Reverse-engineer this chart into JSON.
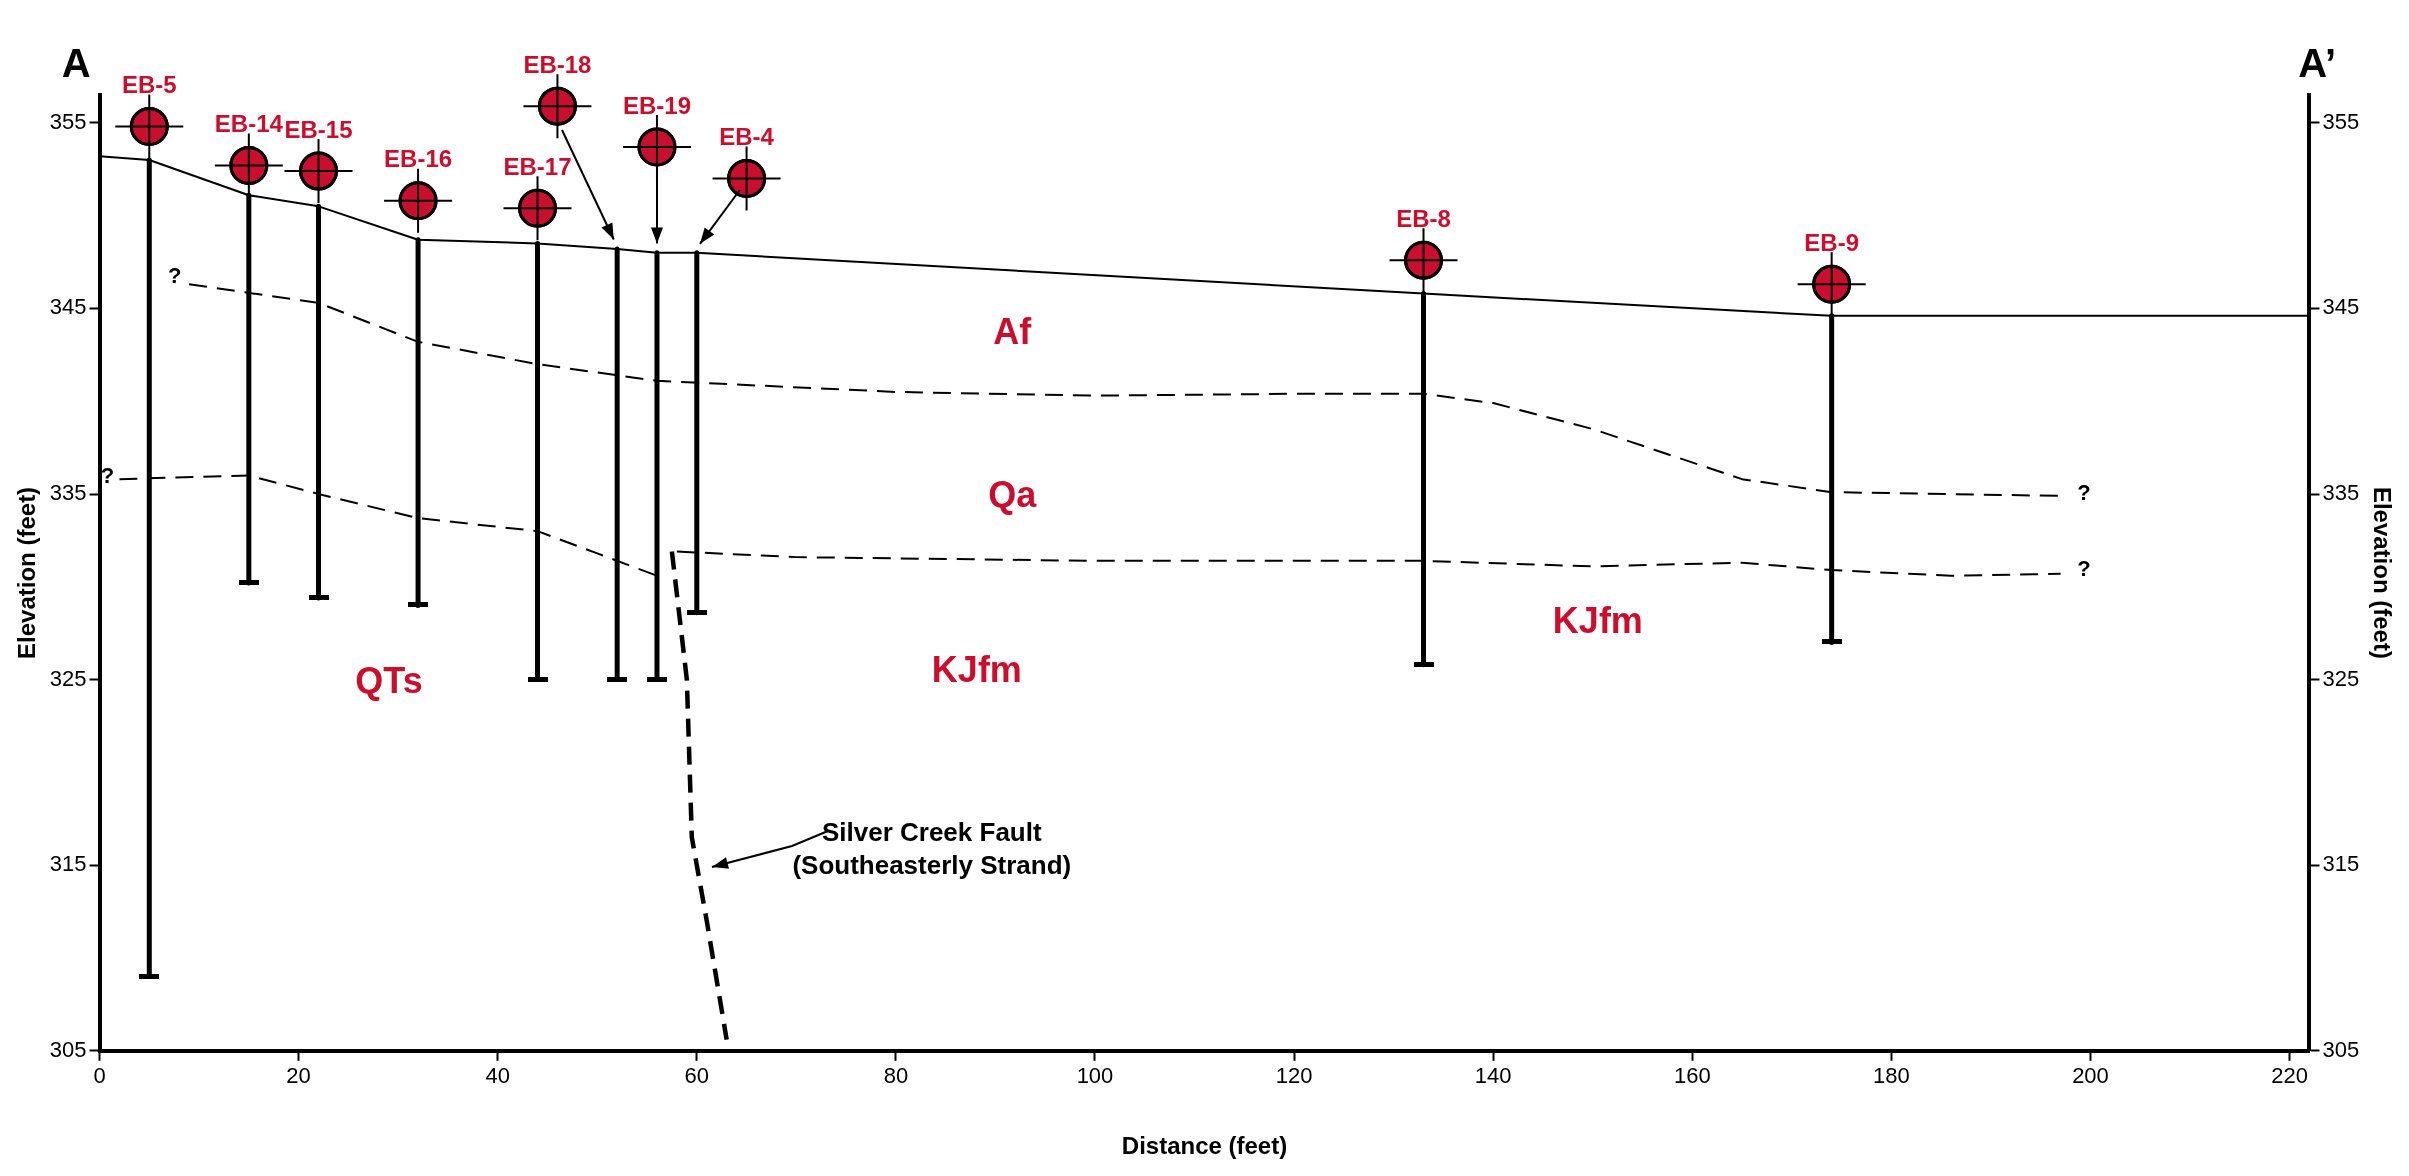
{
  "chart_data": {
    "type": "line",
    "xlabel": "Distance (feet)",
    "ylabel": "Elevation (feet)",
    "y2label": "Elevation (feet)",
    "xlim": [
      0,
      222
    ],
    "xticks": [
      0,
      20,
      40,
      60,
      80,
      100,
      120,
      140,
      160,
      180,
      200,
      220
    ],
    "ylim": [
      305,
      356.5
    ],
    "yticks": [
      305,
      315,
      325,
      335,
      345,
      355
    ],
    "y2lim": [
      305,
      356.5
    ],
    "y2ticks": [
      305,
      315,
      325,
      335,
      345,
      355
    ],
    "grid": false,
    "legend": false,
    "series": [
      {
        "type": "line",
        "color": "#000000",
        "line_style": "solid",
        "x": [
          0,
          5,
          15,
          22,
          32,
          44,
          52,
          56,
          60,
          133,
          174,
          222
        ],
        "values": [
          353.2,
          353.0,
          351.1,
          350.5,
          348.7,
          348.5,
          348.2,
          348.0,
          348.0,
          345.8,
          344.6,
          344.6
        ]
      },
      {
        "type": "line",
        "color": "#000000",
        "line_style": "dashed",
        "x": [
          9,
          22,
          32,
          44,
          56,
          80,
          100,
          120,
          133,
          140,
          150,
          165,
          174,
          197
        ],
        "values": [
          346.3,
          345.3,
          343.2,
          342.0,
          341.1,
          340.5,
          340.3,
          340.4,
          340.4,
          339.9,
          338.5,
          335.8,
          335.1,
          334.9
        ]
      },
      {
        "type": "line",
        "color": "#000000",
        "line_style": "dashed",
        "x": [
          2,
          15,
          22,
          32,
          44,
          50,
          56
        ],
        "values": [
          335.8,
          336.0,
          335.0,
          333.7,
          333.0,
          331.8,
          330.6
        ]
      },
      {
        "type": "line",
        "color": "#000000",
        "line_style": "dashed",
        "x": [
          58,
          70,
          100,
          133,
          150,
          165,
          174,
          186,
          197
        ],
        "values": [
          331.9,
          331.6,
          331.4,
          331.4,
          331.1,
          331.3,
          330.9,
          330.6,
          330.7
        ]
      },
      {
        "type": "line",
        "color": "#000000",
        "line_style": "dashed",
        "x": [
          57.5,
          59,
          59.5,
          61,
          63
        ],
        "values": [
          331.9,
          325,
          316.5,
          312,
          305.6
        ]
      },
      {
        "type": "line",
        "color": "#000000",
        "line_style": "solid",
        "x": [
          5,
          5
        ],
        "values": [
          353.0,
          309.0
        ]
      },
      {
        "type": "line",
        "color": "#000000",
        "line_style": "solid",
        "x": [
          15,
          15
        ],
        "values": [
          351.1,
          330.2
        ]
      },
      {
        "type": "line",
        "color": "#000000",
        "line_style": "solid",
        "x": [
          22,
          22
        ],
        "values": [
          350.5,
          329.4
        ]
      },
      {
        "type": "line",
        "color": "#000000",
        "line_style": "solid",
        "x": [
          32,
          32
        ],
        "values": [
          348.7,
          329.0
        ]
      },
      {
        "type": "line",
        "color": "#000000",
        "line_style": "solid",
        "x": [
          44,
          44
        ],
        "values": [
          348.5,
          325.0
        ]
      },
      {
        "type": "line",
        "color": "#000000",
        "line_style": "solid",
        "x": [
          52,
          52
        ],
        "values": [
          348.2,
          325.0
        ]
      },
      {
        "type": "line",
        "color": "#000000",
        "line_style": "solid",
        "x": [
          56,
          56
        ],
        "values": [
          348.0,
          325.0
        ]
      },
      {
        "type": "line",
        "color": "#000000",
        "line_style": "solid",
        "x": [
          60,
          60
        ],
        "values": [
          348.0,
          328.6
        ]
      },
      {
        "type": "line",
        "color": "#000000",
        "line_style": "solid",
        "x": [
          133,
          133
        ],
        "values": [
          345.8,
          325.8
        ]
      },
      {
        "type": "line",
        "color": "#000000",
        "line_style": "solid",
        "x": [
          174,
          174
        ],
        "values": [
          344.6,
          327.0
        ]
      },
      {
        "type": "scatter",
        "marker": "circle",
        "color": "#c8102e",
        "x": [
          5,
          15,
          22,
          32,
          44,
          46,
          56,
          65,
          133,
          174
        ],
        "values": [
          354.8,
          352.7,
          352.4,
          350.8,
          350.4,
          355.9,
          353.7,
          352.0,
          347.6,
          346.3
        ],
        "value_labels": [
          "EB-5",
          "EB-14",
          "EB-15",
          "EB-16",
          "EB-17",
          "EB-18",
          "EB-19",
          "EB-4",
          "EB-8",
          "EB-9"
        ]
      }
    ],
    "annotations": [
      "A",
      "A’",
      "Af",
      "Qa",
      "QTs",
      "KJfm",
      "KJfm",
      "?",
      "?",
      "?",
      "?",
      "Silver Creek Fault\n(Southeasterly Strand)"
    ]
  }
}
